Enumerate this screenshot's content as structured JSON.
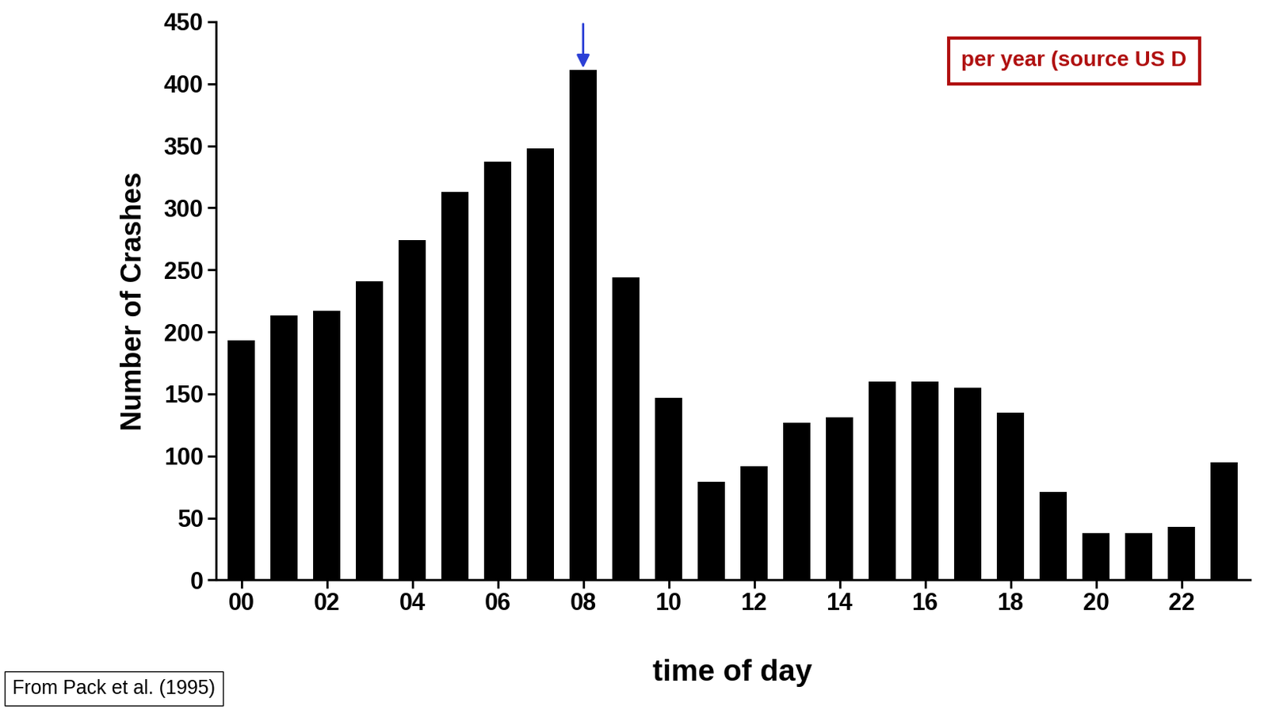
{
  "chart_data": {
    "type": "bar",
    "categories": [
      "00",
      null,
      "02",
      null,
      "04",
      null,
      "06",
      null,
      "08",
      null,
      "10",
      null,
      "12",
      null,
      "14",
      null,
      "16",
      null,
      "18",
      null,
      "20",
      null,
      "22",
      null
    ],
    "values": [
      193,
      213,
      217,
      241,
      274,
      313,
      337,
      348,
      411,
      244,
      147,
      79,
      92,
      127,
      131,
      160,
      160,
      155,
      135,
      71,
      38,
      38,
      43,
      95
    ],
    "color": "#000000",
    "x_label": "time of day",
    "y_label": "Number of Crashes",
    "ylim": [
      0,
      450
    ],
    "yticks": [
      0,
      50,
      100,
      150,
      200,
      250,
      300,
      350,
      400,
      450
    ],
    "grid": false,
    "annotations": [
      "per year (source US D",
      "From Pack et al. (1995)"
    ]
  }
}
